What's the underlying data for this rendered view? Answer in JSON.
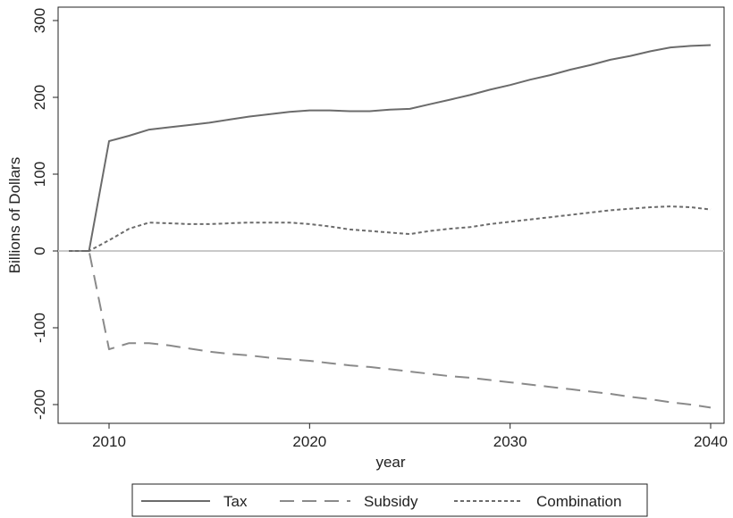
{
  "chart_data": {
    "type": "line",
    "title": "",
    "xlabel": "year",
    "ylabel": "Billions of Dollars",
    "xlim": [
      2008,
      2040
    ],
    "ylim": [
      -205,
      300
    ],
    "x_ticks": [
      2010,
      2020,
      2030,
      2040
    ],
    "x_tick_labels": [
      "2010",
      "2020",
      "2030",
      "2040"
    ],
    "y_ticks": [
      -200,
      -100,
      0,
      100,
      200,
      300
    ],
    "y_tick_labels": [
      "-200",
      "-100",
      "0",
      "100",
      "200",
      "300"
    ],
    "grid": false,
    "zero_line": true,
    "legend_position": "bottom",
    "x": [
      2008,
      2009,
      2010,
      2011,
      2012,
      2013,
      2014,
      2015,
      2016,
      2017,
      2018,
      2019,
      2020,
      2021,
      2022,
      2023,
      2024,
      2025,
      2026,
      2027,
      2028,
      2029,
      2030,
      2031,
      2032,
      2033,
      2034,
      2035,
      2036,
      2037,
      2038,
      2039,
      2040
    ],
    "series": [
      {
        "name": "Tax",
        "color": "#6b6b6b",
        "dash": "solid",
        "values": [
          0,
          0,
          143,
          150,
          158,
          161,
          164,
          167,
          171,
          175,
          178,
          181,
          183,
          183,
          182,
          182,
          184,
          185,
          191,
          197,
          203,
          210,
          216,
          223,
          229,
          236,
          242,
          249,
          254,
          260,
          265,
          267,
          268
        ]
      },
      {
        "name": "Subsidy",
        "color": "#8a8a8a",
        "dash": "long-dash",
        "values": [
          0,
          0,
          -128,
          -120,
          -120,
          -123,
          -127,
          -131,
          -134,
          -136,
          -139,
          -141,
          -143,
          -146,
          -149,
          -151,
          -154,
          -157,
          -160,
          -163,
          -165,
          -168,
          -171,
          -174,
          -177,
          -180,
          -183,
          -186,
          -190,
          -193,
          -197,
          -200,
          -204
        ]
      },
      {
        "name": "Combination",
        "color": "#6b6b6b",
        "dash": "short-dash",
        "values": [
          0,
          0,
          14,
          29,
          37,
          36,
          35,
          35,
          36,
          37,
          37,
          37,
          35,
          32,
          28,
          26,
          24,
          22,
          26,
          29,
          31,
          35,
          38,
          41,
          44,
          47,
          50,
          53,
          55,
          57,
          58,
          57,
          54
        ]
      }
    ]
  }
}
